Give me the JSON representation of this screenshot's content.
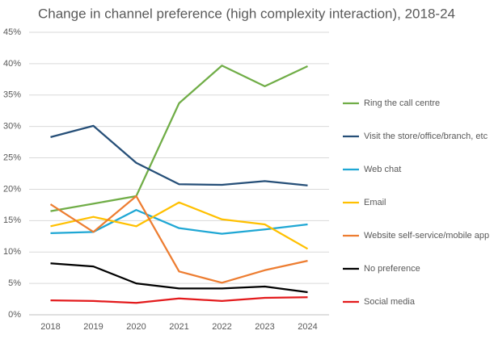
{
  "chart_data": {
    "type": "line",
    "title": "Change in channel preference (high complexity interaction), 2018-24",
    "categories": [
      "2018",
      "2019",
      "2020",
      "2021",
      "2022",
      "2023",
      "2024"
    ],
    "series": [
      {
        "name": "Ring the call centre",
        "color": "#70ad47",
        "values": [
          16.5,
          17.7,
          18.9,
          33.7,
          39.7,
          36.4,
          39.6
        ]
      },
      {
        "name": "Visit the store/office/branch, etc",
        "color": "#264f78",
        "values": [
          28.3,
          30.1,
          24.2,
          20.8,
          20.7,
          21.3,
          20.6
        ]
      },
      {
        "name": "Web chat",
        "color": "#1fa7d4",
        "values": [
          13.0,
          13.2,
          16.7,
          13.8,
          12.9,
          13.6,
          14.4
        ]
      },
      {
        "name": "Email",
        "color": "#ffc000",
        "values": [
          14.1,
          15.6,
          14.1,
          17.9,
          15.2,
          14.4,
          10.5
        ]
      },
      {
        "name": "Website self-service/mobile app",
        "color": "#ed7d31",
        "values": [
          17.6,
          13.2,
          18.9,
          6.9,
          5.1,
          7.1,
          8.6
        ]
      },
      {
        "name": "No preference",
        "color": "#000000",
        "values": [
          8.2,
          7.7,
          5.0,
          4.2,
          4.2,
          4.5,
          3.6
        ]
      },
      {
        "name": "Social media",
        "color": "#e31a1c",
        "values": [
          2.3,
          2.2,
          1.9,
          2.6,
          2.2,
          2.7,
          2.8
        ]
      }
    ],
    "ylim": [
      0,
      45
    ],
    "yticks": [
      {
        "value": 0,
        "label": "0%"
      },
      {
        "value": 5,
        "label": "5%"
      },
      {
        "value": 10,
        "label": "10%"
      },
      {
        "value": 15,
        "label": "15%"
      },
      {
        "value": 20,
        "label": "20%"
      },
      {
        "value": 25,
        "label": "25%"
      },
      {
        "value": 30,
        "label": "30%"
      },
      {
        "value": 35,
        "label": "35%"
      },
      {
        "value": 40,
        "label": "40%"
      },
      {
        "value": 45,
        "label": "45%"
      }
    ],
    "grid": true,
    "legend": "right"
  }
}
